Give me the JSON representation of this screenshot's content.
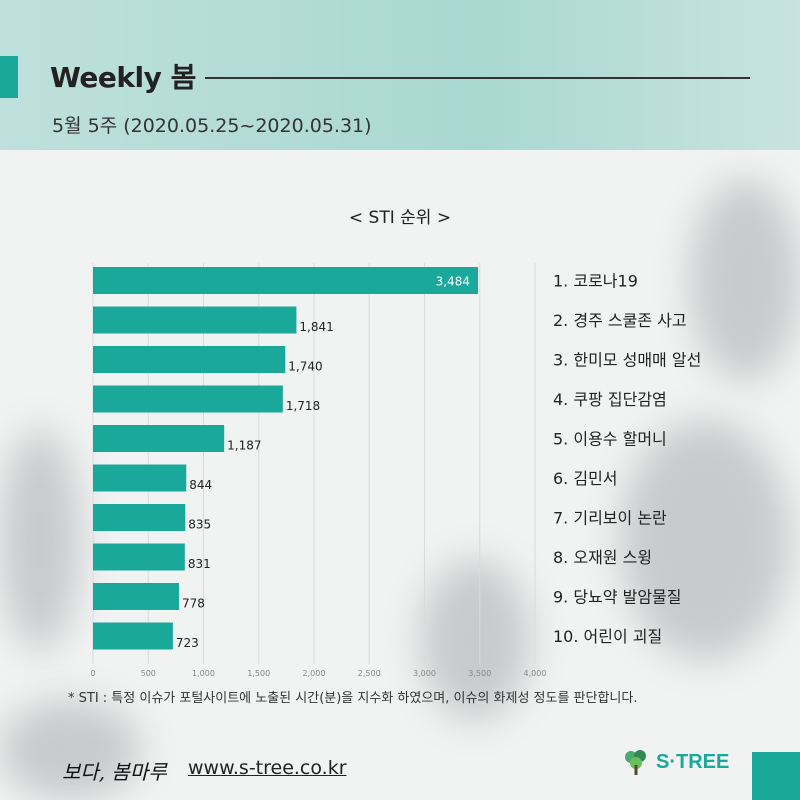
{
  "header": {
    "title": "Weekly 봄",
    "subtitle": "5월 5주 (2020.05.25~2020.05.31)"
  },
  "chart_data": {
    "type": "bar",
    "orientation": "horizontal",
    "title": "< STI 순위 >",
    "categories": [
      "1. 코로나19",
      "2. 경주 스쿨존 사고",
      "3. 한미모 성매매 알선",
      "4. 쿠팡 집단감염",
      "5. 이용수 할머니",
      "6. 김민서",
      "7. 기리보이 논란",
      "8. 오재원 스윙",
      "9. 당뇨약 발암물질",
      "10. 어린이 괴질"
    ],
    "values": [
      3484,
      1841,
      1740,
      1718,
      1187,
      844,
      835,
      831,
      778,
      723
    ],
    "value_labels": [
      "3,484",
      "1,841",
      "1,740",
      "1,718",
      "1,187",
      "844",
      "835",
      "831",
      "778",
      "723"
    ],
    "xlim": [
      0,
      4000
    ],
    "x_ticks": [
      "0",
      "500",
      "1,000",
      "1,500",
      "2,000",
      "2,500",
      "3,000",
      "3,500",
      "4,000"
    ],
    "grid": true,
    "bar_color": "#1aa89b"
  },
  "footnote": "* STI : 특정 이슈가 포털사이트에 노출된 시간(분)을 지수화 하였으며, 이슈의 화제성 정도를 판단합니다.",
  "footer": {
    "logo_text": "보다, 봄마루",
    "url": "www.s-tree.co.kr",
    "brand": "S·TREE"
  },
  "colors": {
    "accent": "#1aa89b",
    "header_band": "#a9d8d1"
  }
}
